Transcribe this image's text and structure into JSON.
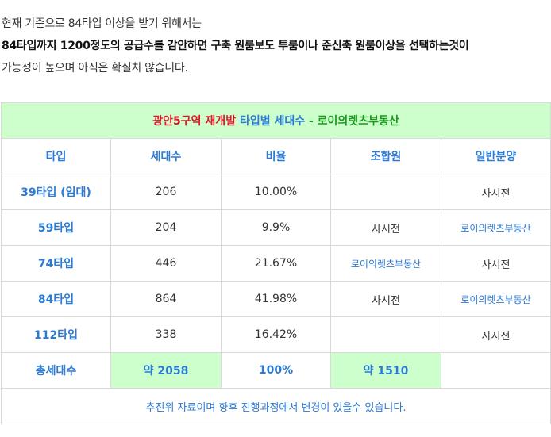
{
  "intro": {
    "line1": "현재 기준으로 84타입 이상을 받기 위해서는",
    "line2": "84타입까지 1200정도의 공급수를 감안하면 구축 원룸보도 투룸이나 준신축 원룸이상을 선택하는것이",
    "line3": "가능성이 높으며 아직은 확실치 않습니다."
  },
  "table": {
    "title": {
      "part_red": "광안5구역 재개발",
      "part_blue": "타입별 세대수",
      "part_green": "- 로이의렛츠부동산"
    },
    "headers": [
      "타입",
      "세대수",
      "비율",
      "조합원",
      "일반분양"
    ],
    "rows": [
      {
        "type": "39타입 (임대)",
        "units": "206",
        "ratio": "10.00%",
        "member": "",
        "general": "사시전"
      },
      {
        "type": "59타입",
        "units": "204",
        "ratio": "9.9%",
        "member": "사시전",
        "general": "로이의렛츠부동산"
      },
      {
        "type": "74타입",
        "units": "446",
        "ratio": "21.67%",
        "member": "로이의렛츠부동산",
        "general": "사시전"
      },
      {
        "type": "84타입",
        "units": "864",
        "ratio": "41.98%",
        "member": "사시전",
        "general": "로이의렛츠부동산"
      },
      {
        "type": "112타입",
        "units": "338",
        "ratio": "16.42%",
        "member": "",
        "general": "사시전"
      }
    ],
    "total": {
      "label": "총세대수",
      "units": "약 2058",
      "ratio": "100%",
      "member": "약 1510",
      "general": ""
    },
    "note": "추진위 자료이며 향후 진행과정에서 변경이 있을수 있습니다.",
    "colors": {
      "accent_blue": "#2b7bd6",
      "title_red": "#e0162b",
      "title_green": "#1a9a1a",
      "highlight_bg": "#ccffcc"
    }
  }
}
